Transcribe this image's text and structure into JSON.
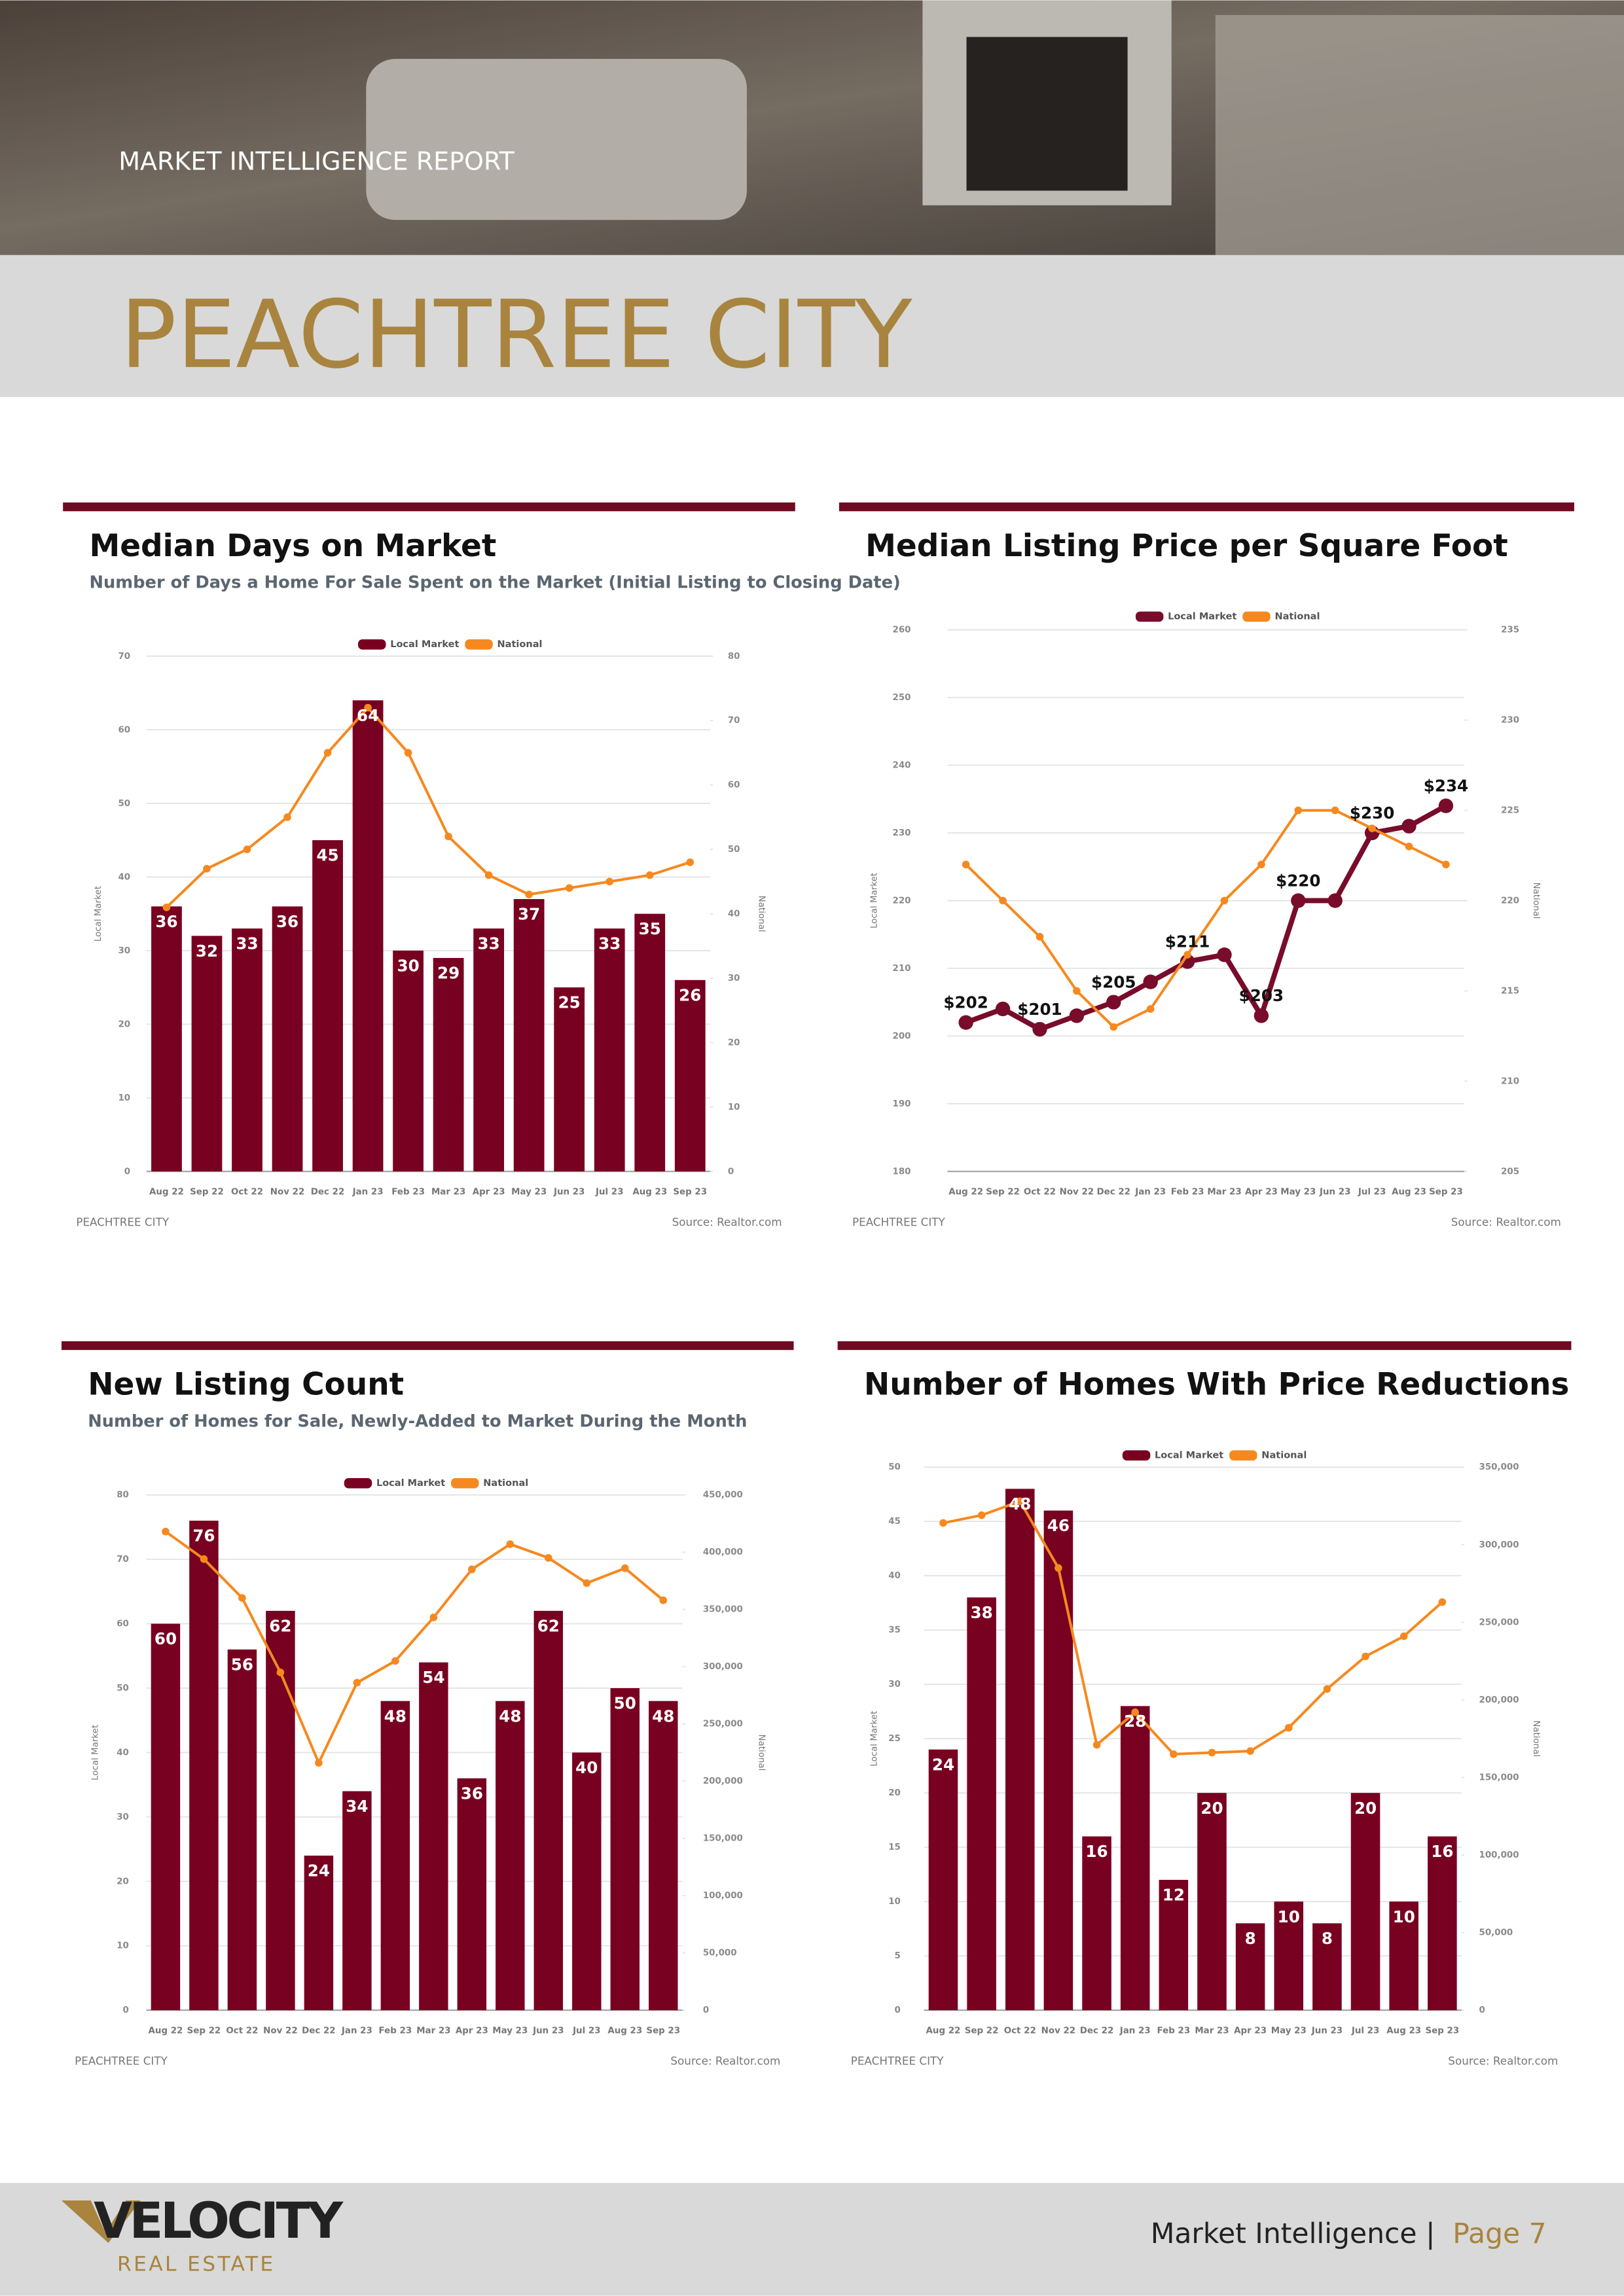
{
  "header": {
    "kicker": "MARKET INTELLIGENCE REPORT",
    "city": "PEACHTREE CITY"
  },
  "footer": {
    "logo": "VELOCITY",
    "logo_sub": "REAL ESTATE",
    "section": "Market Intelligence |",
    "page": "Page 7"
  },
  "chart_data": [
    {
      "type": "bar",
      "title": "Median Days on Market",
      "subtitle": "Number of Days a Home For Sale Spent on the Market (Initial Listing to Closing Date)",
      "categories": [
        "Aug 22",
        "Sep 22",
        "Oct 22",
        "Nov 22",
        "Dec 22",
        "Jan 23",
        "Feb 23",
        "Mar 23",
        "Apr 23",
        "May 23",
        "Jun 23",
        "Jul 23",
        "Aug 23",
        "Sep 23"
      ],
      "series": [
        {
          "name": "Local Market",
          "type": "bar",
          "color": "#780020",
          "values": [
            36,
            32,
            33,
            36,
            45,
            64,
            30,
            29,
            33,
            37,
            25,
            33,
            35,
            26
          ]
        },
        {
          "name": "National",
          "type": "line",
          "axis": "y2",
          "color": "#f5891f",
          "values": [
            41,
            47,
            50,
            55,
            65,
            72,
            65,
            52,
            46,
            43,
            44,
            45,
            46,
            48
          ]
        }
      ],
      "ylim": [
        0,
        70
      ],
      "yticks": [
        0,
        10,
        20,
        30,
        40,
        50,
        60,
        70
      ],
      "y2lim": [
        0,
        80
      ],
      "y2ticks": [
        0,
        10,
        20,
        30,
        40,
        50,
        60,
        70,
        80
      ],
      "ylabel": "Local Market",
      "y2label": "National",
      "grid": true,
      "legend": "top",
      "footer_left": "PEACHTREE CITY",
      "source": "Source: Realtor.com"
    },
    {
      "type": "line",
      "title": "Median Listing Price per Square Foot",
      "categories": [
        "Aug 22",
        "Sep 22",
        "Oct 22",
        "Nov 22",
        "Dec 22",
        "Jan 23",
        "Feb 23",
        "Mar 23",
        "Apr 23",
        "May 23",
        "Jun 23",
        "Jul 23",
        "Aug 23",
        "Sep 23"
      ],
      "series": [
        {
          "name": "Local Market",
          "type": "line",
          "color": "#780c2a",
          "values": [
            202,
            204,
            201,
            203,
            205,
            208,
            211,
            212,
            203,
            220,
            220,
            230,
            231,
            234
          ],
          "value_labels": [
            "$202",
            null,
            "$201",
            null,
            "$205",
            null,
            "$211",
            null,
            "$203",
            "$220",
            null,
            "$230",
            null,
            "$234"
          ]
        },
        {
          "name": "National",
          "type": "line",
          "axis": "y2",
          "color": "#f5891f",
          "values": [
            222,
            220,
            218,
            215,
            213,
            214,
            217,
            220,
            222,
            225,
            225,
            224,
            223,
            222
          ]
        }
      ],
      "ylim": [
        180,
        260
      ],
      "yticks": [
        180,
        190,
        200,
        210,
        220,
        230,
        240,
        250,
        260
      ],
      "y2lim": [
        205,
        235
      ],
      "y2ticks": [
        205,
        210,
        215,
        220,
        225,
        230,
        235
      ],
      "ylabel": "Local Market",
      "y2label": "National",
      "grid": true,
      "legend": "top",
      "footer_left": "PEACHTREE CITY",
      "source": "Source: Realtor.com"
    },
    {
      "type": "bar",
      "title": "New Listing Count",
      "subtitle": "Number of Homes for Sale, Newly-Added to Market During the Month",
      "categories": [
        "Aug 22",
        "Sep 22",
        "Oct 22",
        "Nov 22",
        "Dec 22",
        "Jan 23",
        "Feb 23",
        "Mar 23",
        "Apr 23",
        "May 23",
        "Jun 23",
        "Jul 23",
        "Aug 23",
        "Sep 23"
      ],
      "series": [
        {
          "name": "Local Market",
          "type": "bar",
          "color": "#780020",
          "values": [
            60,
            76,
            56,
            62,
            24,
            34,
            48,
            54,
            36,
            48,
            62,
            40,
            50,
            48
          ]
        },
        {
          "name": "National",
          "type": "line",
          "axis": "y2",
          "color": "#f5891f",
          "values": [
            418000,
            394000,
            360000,
            295000,
            216000,
            286000,
            305000,
            343000,
            385000,
            407000,
            395000,
            373000,
            386000,
            358000
          ]
        }
      ],
      "ylim": [
        0,
        80
      ],
      "yticks": [
        0,
        10,
        20,
        30,
        40,
        50,
        60,
        70,
        80
      ],
      "y2lim": [
        0,
        450000
      ],
      "y2ticks": [
        0,
        {
          "value": 50000,
          "label": "50,000"
        },
        {
          "value": 100000,
          "label": "100,000"
        },
        {
          "value": 150000,
          "label": "150,000"
        },
        {
          "value": 200000,
          "label": "200,000"
        },
        {
          "value": 250000,
          "label": "250,000"
        },
        {
          "value": 300000,
          "label": "300,000"
        },
        {
          "value": 350000,
          "label": "350,000"
        },
        {
          "value": 400000,
          "label": "400,000"
        },
        {
          "value": 450000,
          "label": "450,000"
        }
      ],
      "ylabel": "Local Market",
      "y2label": "National",
      "grid": true,
      "legend": "top",
      "footer_left": "PEACHTREE CITY",
      "source": "Source: Realtor.com"
    },
    {
      "type": "bar",
      "title": "Number of Homes With Price Reductions",
      "categories": [
        "Aug 22",
        "Sep 22",
        "Oct 22",
        "Nov 22",
        "Dec 22",
        "Jan 23",
        "Feb 23",
        "Mar 23",
        "Apr 23",
        "May 23",
        "Jun 23",
        "Jul 23",
        "Aug 23",
        "Sep 23"
      ],
      "series": [
        {
          "name": "Local Market",
          "type": "bar",
          "color": "#780020",
          "values": [
            24,
            38,
            48,
            46,
            16,
            28,
            12,
            20,
            8,
            10,
            8,
            20,
            10,
            16
          ]
        },
        {
          "name": "National",
          "type": "line",
          "axis": "y2",
          "color": "#f5891f",
          "values": [
            314000,
            319000,
            328000,
            285000,
            171000,
            192000,
            165000,
            166000,
            167000,
            182000,
            207000,
            228000,
            241000,
            263000
          ]
        }
      ],
      "ylim": [
        0,
        50
      ],
      "yticks": [
        0,
        5,
        10,
        15,
        20,
        25,
        30,
        35,
        40,
        45,
        50
      ],
      "y2lim": [
        0,
        350000
      ],
      "y2ticks": [
        0,
        {
          "value": 50000,
          "label": "50,000"
        },
        {
          "value": 100000,
          "label": "100,000"
        },
        {
          "value": 150000,
          "label": "150,000"
        },
        {
          "value": 200000,
          "label": "200,000"
        },
        {
          "value": 250000,
          "label": "250,000"
        },
        {
          "value": 300000,
          "label": "300,000"
        },
        {
          "value": 350000,
          "label": "350,000"
        }
      ],
      "ylabel": "Local Market",
      "y2label": "National",
      "grid": true,
      "legend": "top",
      "footer_left": "PEACHTREE CITY",
      "source": "Source: Realtor.com"
    }
  ]
}
